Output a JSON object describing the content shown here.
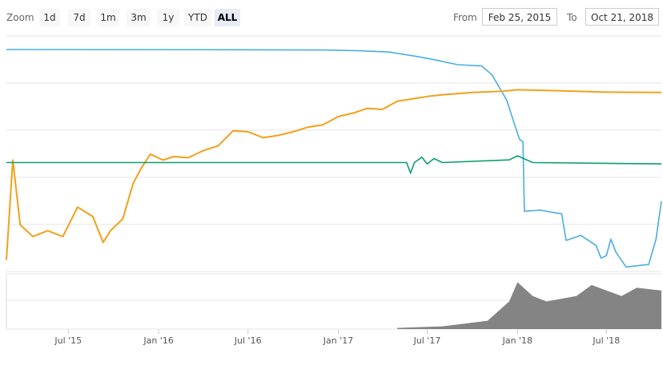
{
  "toolbar": {
    "zoom_label": "Zoom",
    "buttons": [
      "1d",
      "7d",
      "1m",
      "3m",
      "1y",
      "YTD",
      "ALL"
    ],
    "active": "ALL",
    "from_label": "From",
    "from_value": "Feb 25, 2015",
    "to_label": "To",
    "to_value": "Oct 21, 2018"
  },
  "colors": {
    "blue": "#4aaee0",
    "orange": "#f3a01a",
    "green": "#0a9e6e",
    "volume": "#777777",
    "grid": "#e6e6e6"
  },
  "chart_data": {
    "type": "line",
    "title": "",
    "xlabel": "",
    "ylabel": "",
    "grid": true,
    "x_ticks": [
      "Jul '15",
      "Jan '16",
      "Jul '16",
      "Jan '17",
      "Jul '17",
      "Jan '18",
      "Jul '18"
    ],
    "x_range": [
      "2015-02-25",
      "2018-10-21"
    ],
    "series": [
      {
        "color": "#4aaee0",
        "points": [
          [
            "2015-02-25",
            0.0
          ],
          [
            "2016-06-01",
            0.2
          ],
          [
            "2016-12-01",
            0.4
          ],
          [
            "2017-02-15",
            1.0
          ],
          [
            "2017-04-15",
            2.0
          ],
          [
            "2017-06-10",
            5.5
          ],
          [
            "2017-07-15",
            8.0
          ],
          [
            "2017-09-01",
            12.0
          ],
          [
            "2017-10-20",
            13.0
          ],
          [
            "2017-11-10",
            20.0
          ],
          [
            "2017-11-25",
            30.0
          ],
          [
            "2017-12-10",
            40.0
          ],
          [
            "2017-12-25",
            58.0
          ],
          [
            "2018-01-05",
            71.0
          ],
          [
            "2018-01-12",
            73.0
          ],
          [
            "2018-01-15",
            128.0
          ],
          [
            "2018-02-15",
            127.0
          ],
          [
            "2018-04-01",
            130.0
          ],
          [
            "2018-04-10",
            151.0
          ],
          [
            "2018-05-10",
            147.0
          ],
          [
            "2018-06-10",
            155.0
          ],
          [
            "2018-06-20",
            165.0
          ],
          [
            "2018-07-01",
            163.0
          ],
          [
            "2018-07-10",
            150.0
          ],
          [
            "2018-07-20",
            160.0
          ],
          [
            "2018-08-10",
            172.0
          ],
          [
            "2018-09-25",
            170.0
          ],
          [
            "2018-10-10",
            150.0
          ],
          [
            "2018-10-21",
            120.0
          ]
        ]
      },
      {
        "color": "#f3a01a",
        "points": [
          [
            "2015-02-25",
            145.0
          ],
          [
            "2015-03-10",
            60.0
          ],
          [
            "2015-03-25",
            115.0
          ],
          [
            "2015-04-20",
            125.0
          ],
          [
            "2015-05-20",
            120.0
          ],
          [
            "2015-06-20",
            125.0
          ],
          [
            "2015-07-20",
            100.0
          ],
          [
            "2015-08-20",
            108.0
          ],
          [
            "2015-09-10",
            130.0
          ],
          [
            "2015-09-25",
            120.0
          ],
          [
            "2015-10-20",
            110.0
          ],
          [
            "2015-11-10",
            80.0
          ],
          [
            "2015-11-25",
            68.0
          ],
          [
            "2015-12-15",
            55.0
          ],
          [
            "2016-01-10",
            60.0
          ],
          [
            "2016-02-01",
            57.0
          ],
          [
            "2016-03-01",
            58.0
          ],
          [
            "2016-04-01",
            52.0
          ],
          [
            "2016-05-01",
            48.0
          ],
          [
            "2016-06-01",
            35.0
          ],
          [
            "2016-07-01",
            36.0
          ],
          [
            "2016-08-01",
            41.0
          ],
          [
            "2016-09-01",
            39.0
          ],
          [
            "2016-10-01",
            36.0
          ],
          [
            "2016-11-01",
            32.0
          ],
          [
            "2016-12-01",
            30.0
          ],
          [
            "2017-01-01",
            23.0
          ],
          [
            "2017-02-01",
            20.0
          ],
          [
            "2017-03-01",
            16.0
          ],
          [
            "2017-04-01",
            17.0
          ],
          [
            "2017-05-01",
            10.0
          ],
          [
            "2017-06-01",
            8.0
          ],
          [
            "2017-07-01",
            6.0
          ],
          [
            "2017-08-01",
            4.5
          ],
          [
            "2017-10-01",
            2.5
          ],
          [
            "2017-12-01",
            1.5
          ],
          [
            "2018-01-01",
            0.3
          ],
          [
            "2018-03-01",
            0.8
          ],
          [
            "2018-05-01",
            1.5
          ],
          [
            "2018-07-01",
            2.3
          ],
          [
            "2018-10-21",
            2.5
          ]
        ]
      },
      {
        "color": "#0a9e6e",
        "points": [
          [
            "2015-02-25",
            1.0
          ],
          [
            "2015-02-26",
            1.0
          ],
          [
            "2017-05-20",
            1.0
          ],
          [
            "2017-05-28",
            0.92
          ],
          [
            "2017-06-05",
            1.0
          ],
          [
            "2017-06-20",
            1.04
          ],
          [
            "2017-07-01",
            0.99
          ],
          [
            "2017-07-15",
            1.03
          ],
          [
            "2017-08-01",
            1.0
          ],
          [
            "2017-12-15",
            1.02
          ],
          [
            "2018-01-01",
            1.05
          ],
          [
            "2018-02-01",
            1.0
          ],
          [
            "2018-10-21",
            0.99
          ]
        ]
      }
    ],
    "volume_area": [
      [
        "2017-05-01",
        0.02
      ],
      [
        "2017-08-01",
        0.05
      ],
      [
        "2017-11-01",
        0.15
      ],
      [
        "2017-12-15",
        0.5
      ],
      [
        "2018-01-01",
        0.85
      ],
      [
        "2018-02-01",
        0.6
      ],
      [
        "2018-03-01",
        0.5
      ],
      [
        "2018-05-01",
        0.6
      ],
      [
        "2018-06-01",
        0.8
      ],
      [
        "2018-07-01",
        0.7
      ],
      [
        "2018-08-01",
        0.6
      ],
      [
        "2018-09-01",
        0.75
      ],
      [
        "2018-10-21",
        0.7
      ]
    ]
  }
}
